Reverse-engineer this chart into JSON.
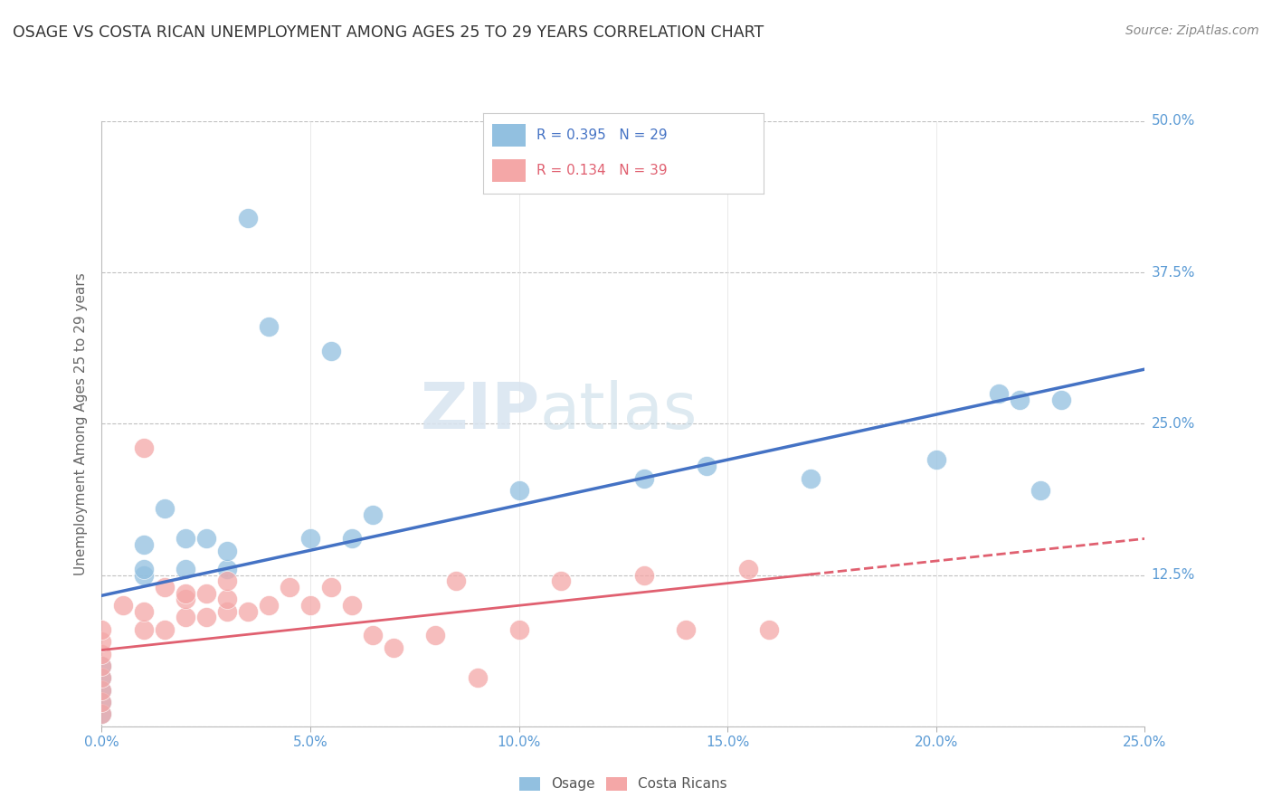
{
  "title": "OSAGE VS COSTA RICAN UNEMPLOYMENT AMONG AGES 25 TO 29 YEARS CORRELATION CHART",
  "source": "Source: ZipAtlas.com",
  "ylabel": "Unemployment Among Ages 25 to 29 years",
  "xlabel": "",
  "xlim": [
    0.0,
    0.25
  ],
  "ylim": [
    0.0,
    0.5
  ],
  "xticks": [
    0.0,
    0.05,
    0.1,
    0.15,
    0.2,
    0.25
  ],
  "yticks": [
    0.0,
    0.125,
    0.25,
    0.375,
    0.5
  ],
  "xticklabels": [
    "0.0%",
    "5.0%",
    "10.0%",
    "15.0%",
    "20.0%",
    "25.0%"
  ],
  "yticklabels": [
    "",
    "12.5%",
    "25.0%",
    "37.5%",
    "50.0%"
  ],
  "legend_R1": "R = 0.395",
  "legend_N1": "N = 29",
  "legend_R2": "R = 0.134",
  "legend_N2": "N = 39",
  "blue_color": "#92c0e0",
  "pink_color": "#f4a7a7",
  "trend_blue": "#4472c4",
  "trend_pink": "#e06070",
  "osage_x": [
    0.0,
    0.0,
    0.0,
    0.0,
    0.0,
    0.01,
    0.01,
    0.01,
    0.015,
    0.02,
    0.02,
    0.025,
    0.03,
    0.03,
    0.035,
    0.04,
    0.05,
    0.055,
    0.06,
    0.065,
    0.1,
    0.13,
    0.145,
    0.17,
    0.2,
    0.215,
    0.22,
    0.225,
    0.23
  ],
  "osage_y": [
    0.01,
    0.02,
    0.03,
    0.04,
    0.05,
    0.125,
    0.13,
    0.15,
    0.18,
    0.13,
    0.155,
    0.155,
    0.13,
    0.145,
    0.42,
    0.33,
    0.155,
    0.31,
    0.155,
    0.175,
    0.195,
    0.205,
    0.215,
    0.205,
    0.22,
    0.275,
    0.27,
    0.195,
    0.27
  ],
  "costa_x": [
    0.0,
    0.0,
    0.0,
    0.0,
    0.0,
    0.0,
    0.0,
    0.0,
    0.005,
    0.01,
    0.01,
    0.01,
    0.015,
    0.015,
    0.02,
    0.02,
    0.02,
    0.025,
    0.025,
    0.03,
    0.03,
    0.03,
    0.035,
    0.04,
    0.045,
    0.05,
    0.055,
    0.06,
    0.065,
    0.07,
    0.08,
    0.085,
    0.09,
    0.1,
    0.11,
    0.13,
    0.14,
    0.155,
    0.16
  ],
  "costa_y": [
    0.01,
    0.02,
    0.03,
    0.04,
    0.05,
    0.06,
    0.07,
    0.08,
    0.1,
    0.08,
    0.095,
    0.23,
    0.08,
    0.115,
    0.09,
    0.105,
    0.11,
    0.09,
    0.11,
    0.095,
    0.105,
    0.12,
    0.095,
    0.1,
    0.115,
    0.1,
    0.115,
    0.1,
    0.075,
    0.065,
    0.075,
    0.12,
    0.04,
    0.08,
    0.12,
    0.125,
    0.08,
    0.13,
    0.08
  ],
  "watermark_zip": "ZIP",
  "watermark_atlas": "atlas",
  "background_color": "#ffffff",
  "title_color": "#333333",
  "tick_label_color": "#5b9bd5"
}
